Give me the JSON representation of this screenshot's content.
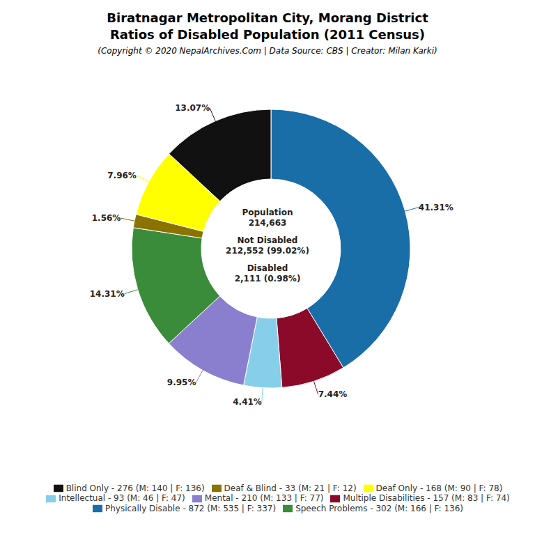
{
  "chart_data": {
    "type": "donut",
    "title": "Biratnagar Metropolitan City, Morang District\nRatios of Disabled Population (2011 Census)",
    "subtitle": "(Copyright © 2020 NepalArchives.Com | Data Source: CBS | Creator: Milan Karki)",
    "categories": [
      "Physically Disable - 872 (M: 535 | F: 337)",
      "Multiple Disabilities - 157 (M: 83 | F: 74)",
      "Intellectual - 93 (M: 46 | F: 47)",
      "Mental - 210 (M: 133 | F: 77)",
      "Speech Problems - 302 (M: 166 | F: 136)",
      "Deaf & Blind - 33 (M: 21 | F: 12)",
      "Deaf Only - 168 (M: 90 | F: 78)",
      "Blind Only - 276 (M: 140 | F: 136)"
    ],
    "values": [
      41.31,
      7.44,
      4.41,
      9.95,
      14.31,
      1.56,
      7.96,
      13.07
    ],
    "value_labels": [
      "41.31%",
      "7.44%",
      "4.41%",
      "9.95%",
      "14.31%",
      "1.56%",
      "7.96%",
      "13.07%"
    ],
    "colors": [
      "#1a6ea8",
      "#8b0a2a",
      "#87ceeb",
      "#8a7fcf",
      "#3a8c3a",
      "#8b7300",
      "#ffff00",
      "#111111"
    ],
    "annotations": [
      "Population\n214,663",
      "Not Disabled\n212,552 (99.02%)",
      "Disabled\n2,111 (0.98%)"
    ],
    "legend": "bottom",
    "data_labels": true
  }
}
